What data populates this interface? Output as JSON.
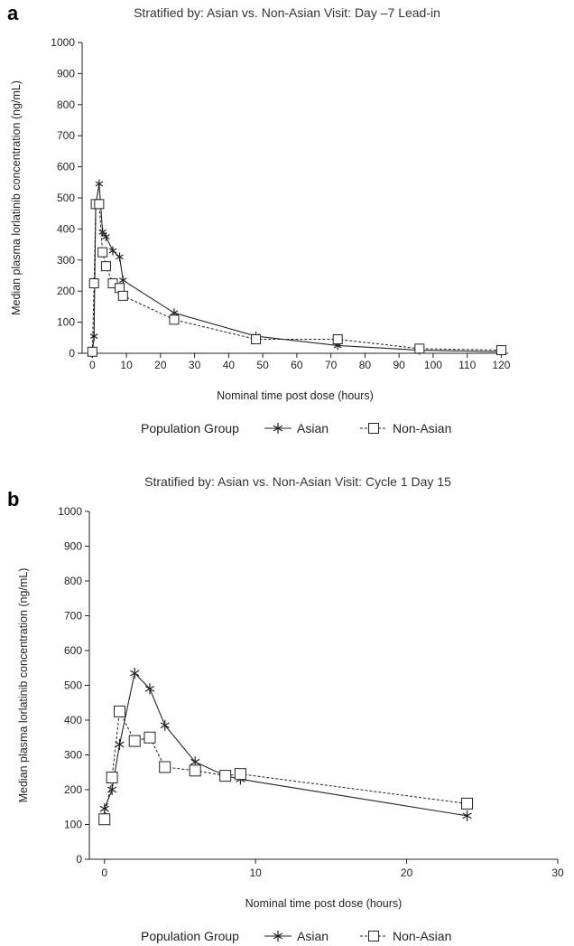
{
  "chart_data": [
    {
      "type": "line",
      "panel": "a",
      "title": "Stratified by: Asian vs. Non-Asian    Visit: Day –7 Lead-in",
      "xlabel": "Nominal time post dose (hours)",
      "ylabel": "Median plasma lorlatinib concentration (ng/mL)",
      "xlim": [
        -3,
        122
      ],
      "ylim": [
        0,
        1000
      ],
      "xticks": [
        0,
        10,
        20,
        30,
        40,
        50,
        60,
        70,
        80,
        90,
        100,
        110,
        120
      ],
      "yticks": [
        0,
        100,
        200,
        300,
        400,
        500,
        600,
        700,
        800,
        900,
        1000
      ],
      "legend_title": "Population Group",
      "series": [
        {
          "name": "Asian",
          "marker": "asterisk",
          "line": "solid",
          "x": [
            0,
            0.5,
            1,
            2,
            3,
            4,
            6,
            8,
            9,
            24,
            48,
            72,
            96,
            120
          ],
          "y": [
            0,
            55,
            480,
            545,
            390,
            375,
            330,
            310,
            235,
            130,
            55,
            25,
            10,
            5
          ]
        },
        {
          "name": "Non-Asian",
          "marker": "square",
          "line": "dashed",
          "x": [
            0,
            0.5,
            1,
            2,
            3,
            4,
            6,
            8,
            9,
            24,
            48,
            72,
            96,
            120
          ],
          "y": [
            5,
            225,
            480,
            480,
            325,
            280,
            225,
            210,
            185,
            108,
            45,
            45,
            15,
            10
          ]
        }
      ]
    },
    {
      "type": "line",
      "panel": "b",
      "title": "Stratified by: Asian vs. Non-Asian    Visit: Cycle 1 Day 15",
      "xlabel": "Nominal time post dose (hours)",
      "ylabel": "Median plasma lorlatinib concentration (ng/mL)",
      "xlim": [
        -1,
        30
      ],
      "ylim": [
        0,
        1000
      ],
      "xticks": [
        0,
        10,
        20,
        30
      ],
      "yticks": [
        0,
        100,
        200,
        300,
        400,
        500,
        600,
        700,
        800,
        900,
        1000
      ],
      "legend_title": "Population Group",
      "series": [
        {
          "name": "Asian",
          "marker": "asterisk",
          "line": "solid",
          "x": [
            0,
            0.5,
            1,
            2,
            3,
            4,
            6,
            8,
            9,
            24
          ],
          "y": [
            145,
            200,
            330,
            535,
            490,
            385,
            280,
            240,
            230,
            125
          ]
        },
        {
          "name": "Non-Asian",
          "marker": "square",
          "line": "dashed",
          "x": [
            0,
            0.5,
            1,
            2,
            3,
            4,
            6,
            8,
            9,
            24
          ],
          "y": [
            115,
            235,
            425,
            340,
            350,
            265,
            255,
            240,
            245,
            160
          ]
        }
      ]
    }
  ],
  "colors": {
    "line": "#222222",
    "background": "#ffffff"
  }
}
